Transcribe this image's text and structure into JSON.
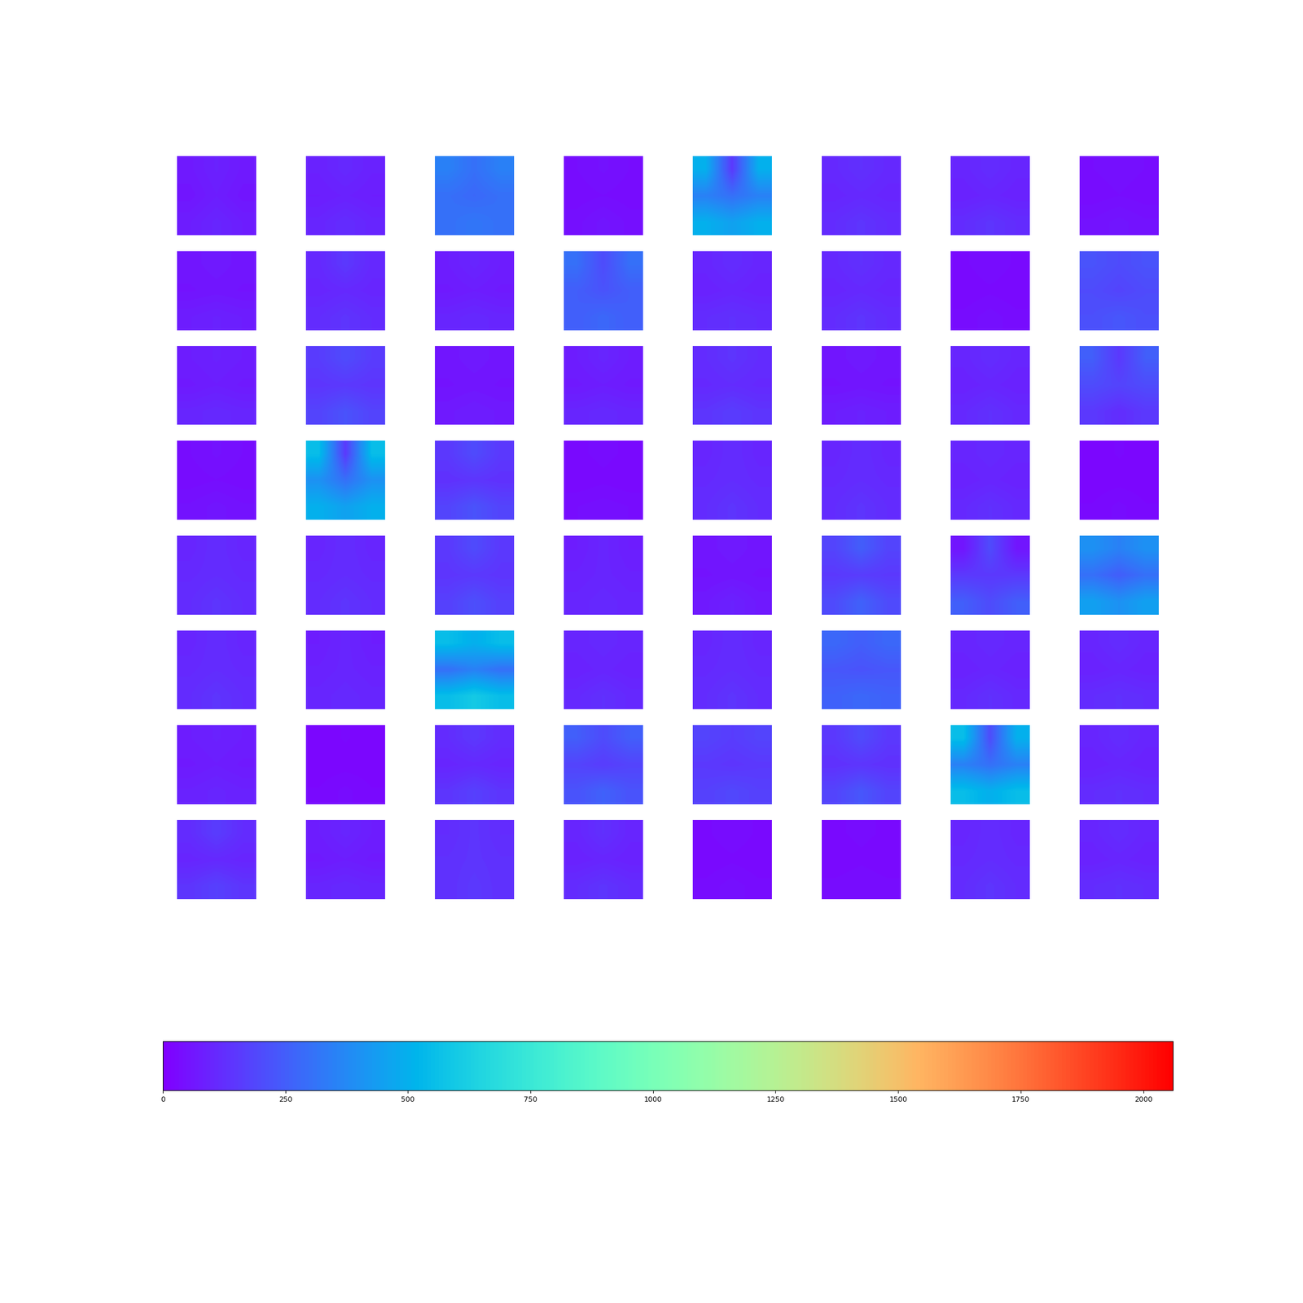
{
  "chart_data": {
    "type": "heatmap_grid",
    "color": "rainbow",
    "tick_labels": false,
    "colorbar_range": [
      0,
      2060
    ],
    "colorbar_ticks": [
      0,
      250,
      500,
      750,
      1000,
      1250,
      1500,
      1750,
      2000
    ],
    "maps": [
      [
        [
          70,
          90,
          70
        ],
        [
          60,
          80,
          60
        ],
        [
          80,
          100,
          80
        ]
      ],
      [
        [
          90,
          110,
          90
        ],
        [
          80,
          90,
          80
        ],
        [
          100,
          120,
          100
        ]
      ],
      [
        [
          350,
          300,
          350
        ],
        [
          300,
          280,
          300
        ],
        [
          300,
          320,
          300
        ]
      ],
      [
        [
          40,
          50,
          40
        ],
        [
          35,
          40,
          35
        ],
        [
          45,
          60,
          45
        ]
      ],
      [
        [
          500,
          150,
          500
        ],
        [
          350,
          300,
          350
        ],
        [
          500,
          450,
          500
        ]
      ],
      [
        [
          110,
          130,
          110
        ],
        [
          100,
          110,
          100
        ],
        [
          120,
          140,
          120
        ]
      ],
      [
        [
          100,
          120,
          100
        ],
        [
          90,
          100,
          90
        ],
        [
          120,
          140,
          120
        ]
      ],
      [
        [
          40,
          45,
          40
        ],
        [
          35,
          40,
          35
        ],
        [
          50,
          60,
          50
        ]
      ],
      [
        [
          60,
          70,
          60
        ],
        [
          55,
          60,
          55
        ],
        [
          80,
          90,
          80
        ]
      ],
      [
        [
          110,
          150,
          110
        ],
        [
          100,
          110,
          100
        ],
        [
          120,
          140,
          120
        ]
      ],
      [
        [
          80,
          100,
          80
        ],
        [
          70,
          80,
          70
        ],
        [
          100,
          110,
          100
        ]
      ],
      [
        [
          300,
          200,
          300
        ],
        [
          250,
          220,
          250
        ],
        [
          250,
          280,
          250
        ]
      ],
      [
        [
          100,
          120,
          100
        ],
        [
          90,
          100,
          90
        ],
        [
          120,
          130,
          120
        ]
      ],
      [
        [
          110,
          130,
          110
        ],
        [
          100,
          110,
          100
        ],
        [
          120,
          140,
          120
        ]
      ],
      [
        [
          30,
          40,
          30
        ],
        [
          25,
          30,
          25
        ],
        [
          35,
          45,
          35
        ]
      ],
      [
        [
          220,
          200,
          220
        ],
        [
          200,
          180,
          200
        ],
        [
          210,
          230,
          210
        ]
      ],
      [
        [
          80,
          90,
          80
        ],
        [
          70,
          80,
          70
        ],
        [
          100,
          110,
          100
        ]
      ],
      [
        [
          160,
          200,
          160
        ],
        [
          140,
          150,
          140
        ],
        [
          180,
          220,
          180
        ]
      ],
      [
        [
          60,
          70,
          60
        ],
        [
          55,
          60,
          55
        ],
        [
          70,
          80,
          70
        ]
      ],
      [
        [
          80,
          100,
          80
        ],
        [
          70,
          80,
          70
        ],
        [
          100,
          110,
          100
        ]
      ],
      [
        [
          120,
          140,
          120
        ],
        [
          110,
          120,
          110
        ],
        [
          140,
          160,
          140
        ]
      ],
      [
        [
          60,
          70,
          60
        ],
        [
          55,
          60,
          55
        ],
        [
          80,
          90,
          80
        ]
      ],
      [
        [
          100,
          120,
          100
        ],
        [
          90,
          100,
          90
        ],
        [
          110,
          130,
          110
        ]
      ],
      [
        [
          250,
          150,
          250
        ],
        [
          200,
          180,
          200
        ],
        [
          150,
          120,
          150
        ]
      ],
      [
        [
          40,
          50,
          40
        ],
        [
          35,
          40,
          35
        ],
        [
          50,
          60,
          50
        ]
      ],
      [
        [
          550,
          150,
          550
        ],
        [
          400,
          300,
          400
        ],
        [
          500,
          450,
          500
        ]
      ],
      [
        [
          150,
          200,
          150
        ],
        [
          130,
          140,
          130
        ],
        [
          180,
          220,
          180
        ]
      ],
      [
        [
          30,
          35,
          30
        ],
        [
          25,
          30,
          25
        ],
        [
          40,
          45,
          40
        ]
      ],
      [
        [
          100,
          120,
          100
        ],
        [
          110,
          120,
          110
        ],
        [
          120,
          140,
          120
        ]
      ],
      [
        [
          100,
          120,
          100
        ],
        [
          110,
          120,
          110
        ],
        [
          120,
          140,
          120
        ]
      ],
      [
        [
          100,
          110,
          100
        ],
        [
          90,
          100,
          90
        ],
        [
          110,
          130,
          110
        ]
      ],
      [
        [
          20,
          25,
          20
        ],
        [
          18,
          20,
          18
        ],
        [
          25,
          35,
          25
        ]
      ],
      [
        [
          100,
          120,
          100
        ],
        [
          110,
          120,
          110
        ],
        [
          120,
          140,
          120
        ]
      ],
      [
        [
          100,
          120,
          100
        ],
        [
          110,
          120,
          110
        ],
        [
          120,
          140,
          120
        ]
      ],
      [
        [
          150,
          200,
          150
        ],
        [
          140,
          150,
          140
        ],
        [
          170,
          210,
          170
        ]
      ],
      [
        [
          80,
          100,
          80
        ],
        [
          90,
          100,
          90
        ],
        [
          100,
          110,
          100
        ]
      ],
      [
        [
          60,
          70,
          60
        ],
        [
          55,
          60,
          55
        ],
        [
          70,
          90,
          70
        ]
      ],
      [
        [
          180,
          250,
          180
        ],
        [
          150,
          160,
          150
        ],
        [
          200,
          260,
          200
        ]
      ],
      [
        [
          60,
          200,
          60
        ],
        [
          150,
          150,
          150
        ],
        [
          250,
          200,
          250
        ]
      ],
      [
        [
          400,
          350,
          400
        ],
        [
          300,
          250,
          300
        ],
        [
          450,
          400,
          450
        ]
      ],
      [
        [
          100,
          120,
          100
        ],
        [
          110,
          120,
          110
        ],
        [
          120,
          140,
          120
        ]
      ],
      [
        [
          80,
          100,
          80
        ],
        [
          90,
          100,
          90
        ],
        [
          100,
          110,
          100
        ]
      ],
      [
        [
          550,
          500,
          550
        ],
        [
          300,
          350,
          300
        ],
        [
          550,
          600,
          550
        ]
      ],
      [
        [
          100,
          110,
          100
        ],
        [
          90,
          100,
          90
        ],
        [
          110,
          130,
          110
        ]
      ],
      [
        [
          100,
          120,
          100
        ],
        [
          110,
          120,
          110
        ],
        [
          120,
          140,
          120
        ]
      ],
      [
        [
          280,
          250,
          280
        ],
        [
          230,
          220,
          230
        ],
        [
          260,
          280,
          260
        ]
      ],
      [
        [
          100,
          110,
          100
        ],
        [
          90,
          100,
          90
        ],
        [
          110,
          130,
          110
        ]
      ],
      [
        [
          100,
          120,
          100
        ],
        [
          90,
          100,
          90
        ],
        [
          120,
          130,
          120
        ]
      ],
      [
        [
          80,
          90,
          80
        ],
        [
          70,
          80,
          70
        ],
        [
          90,
          100,
          90
        ]
      ],
      [
        [
          20,
          25,
          20
        ],
        [
          18,
          20,
          18
        ],
        [
          25,
          35,
          25
        ]
      ],
      [
        [
          120,
          150,
          120
        ],
        [
          100,
          110,
          100
        ],
        [
          140,
          170,
          140
        ]
      ],
      [
        [
          250,
          200,
          250
        ],
        [
          180,
          160,
          180
        ],
        [
          220,
          260,
          220
        ]
      ],
      [
        [
          180,
          160,
          180
        ],
        [
          150,
          140,
          150
        ],
        [
          170,
          190,
          170
        ]
      ],
      [
        [
          150,
          200,
          150
        ],
        [
          130,
          140,
          130
        ],
        [
          180,
          230,
          180
        ]
      ],
      [
        [
          550,
          200,
          500
        ],
        [
          350,
          300,
          350
        ],
        [
          550,
          500,
          550
        ]
      ],
      [
        [
          100,
          120,
          100
        ],
        [
          90,
          100,
          90
        ],
        [
          120,
          130,
          120
        ]
      ],
      [
        [
          120,
          160,
          120
        ],
        [
          100,
          110,
          100
        ],
        [
          140,
          170,
          140
        ]
      ],
      [
        [
          80,
          100,
          80
        ],
        [
          70,
          80,
          70
        ],
        [
          100,
          110,
          100
        ]
      ],
      [
        [
          120,
          140,
          120
        ],
        [
          130,
          140,
          130
        ],
        [
          130,
          150,
          130
        ]
      ],
      [
        [
          100,
          130,
          100
        ],
        [
          90,
          100,
          90
        ],
        [
          120,
          140,
          120
        ]
      ],
      [
        [
          30,
          40,
          30
        ],
        [
          25,
          30,
          25
        ],
        [
          35,
          45,
          35
        ]
      ],
      [
        [
          30,
          35,
          30
        ],
        [
          25,
          30,
          25
        ],
        [
          35,
          40,
          35
        ]
      ],
      [
        [
          100,
          120,
          100
        ],
        [
          110,
          120,
          110
        ],
        [
          120,
          140,
          120
        ]
      ],
      [
        [
          100,
          120,
          100
        ],
        [
          90,
          100,
          90
        ],
        [
          120,
          130,
          120
        ]
      ]
    ]
  }
}
